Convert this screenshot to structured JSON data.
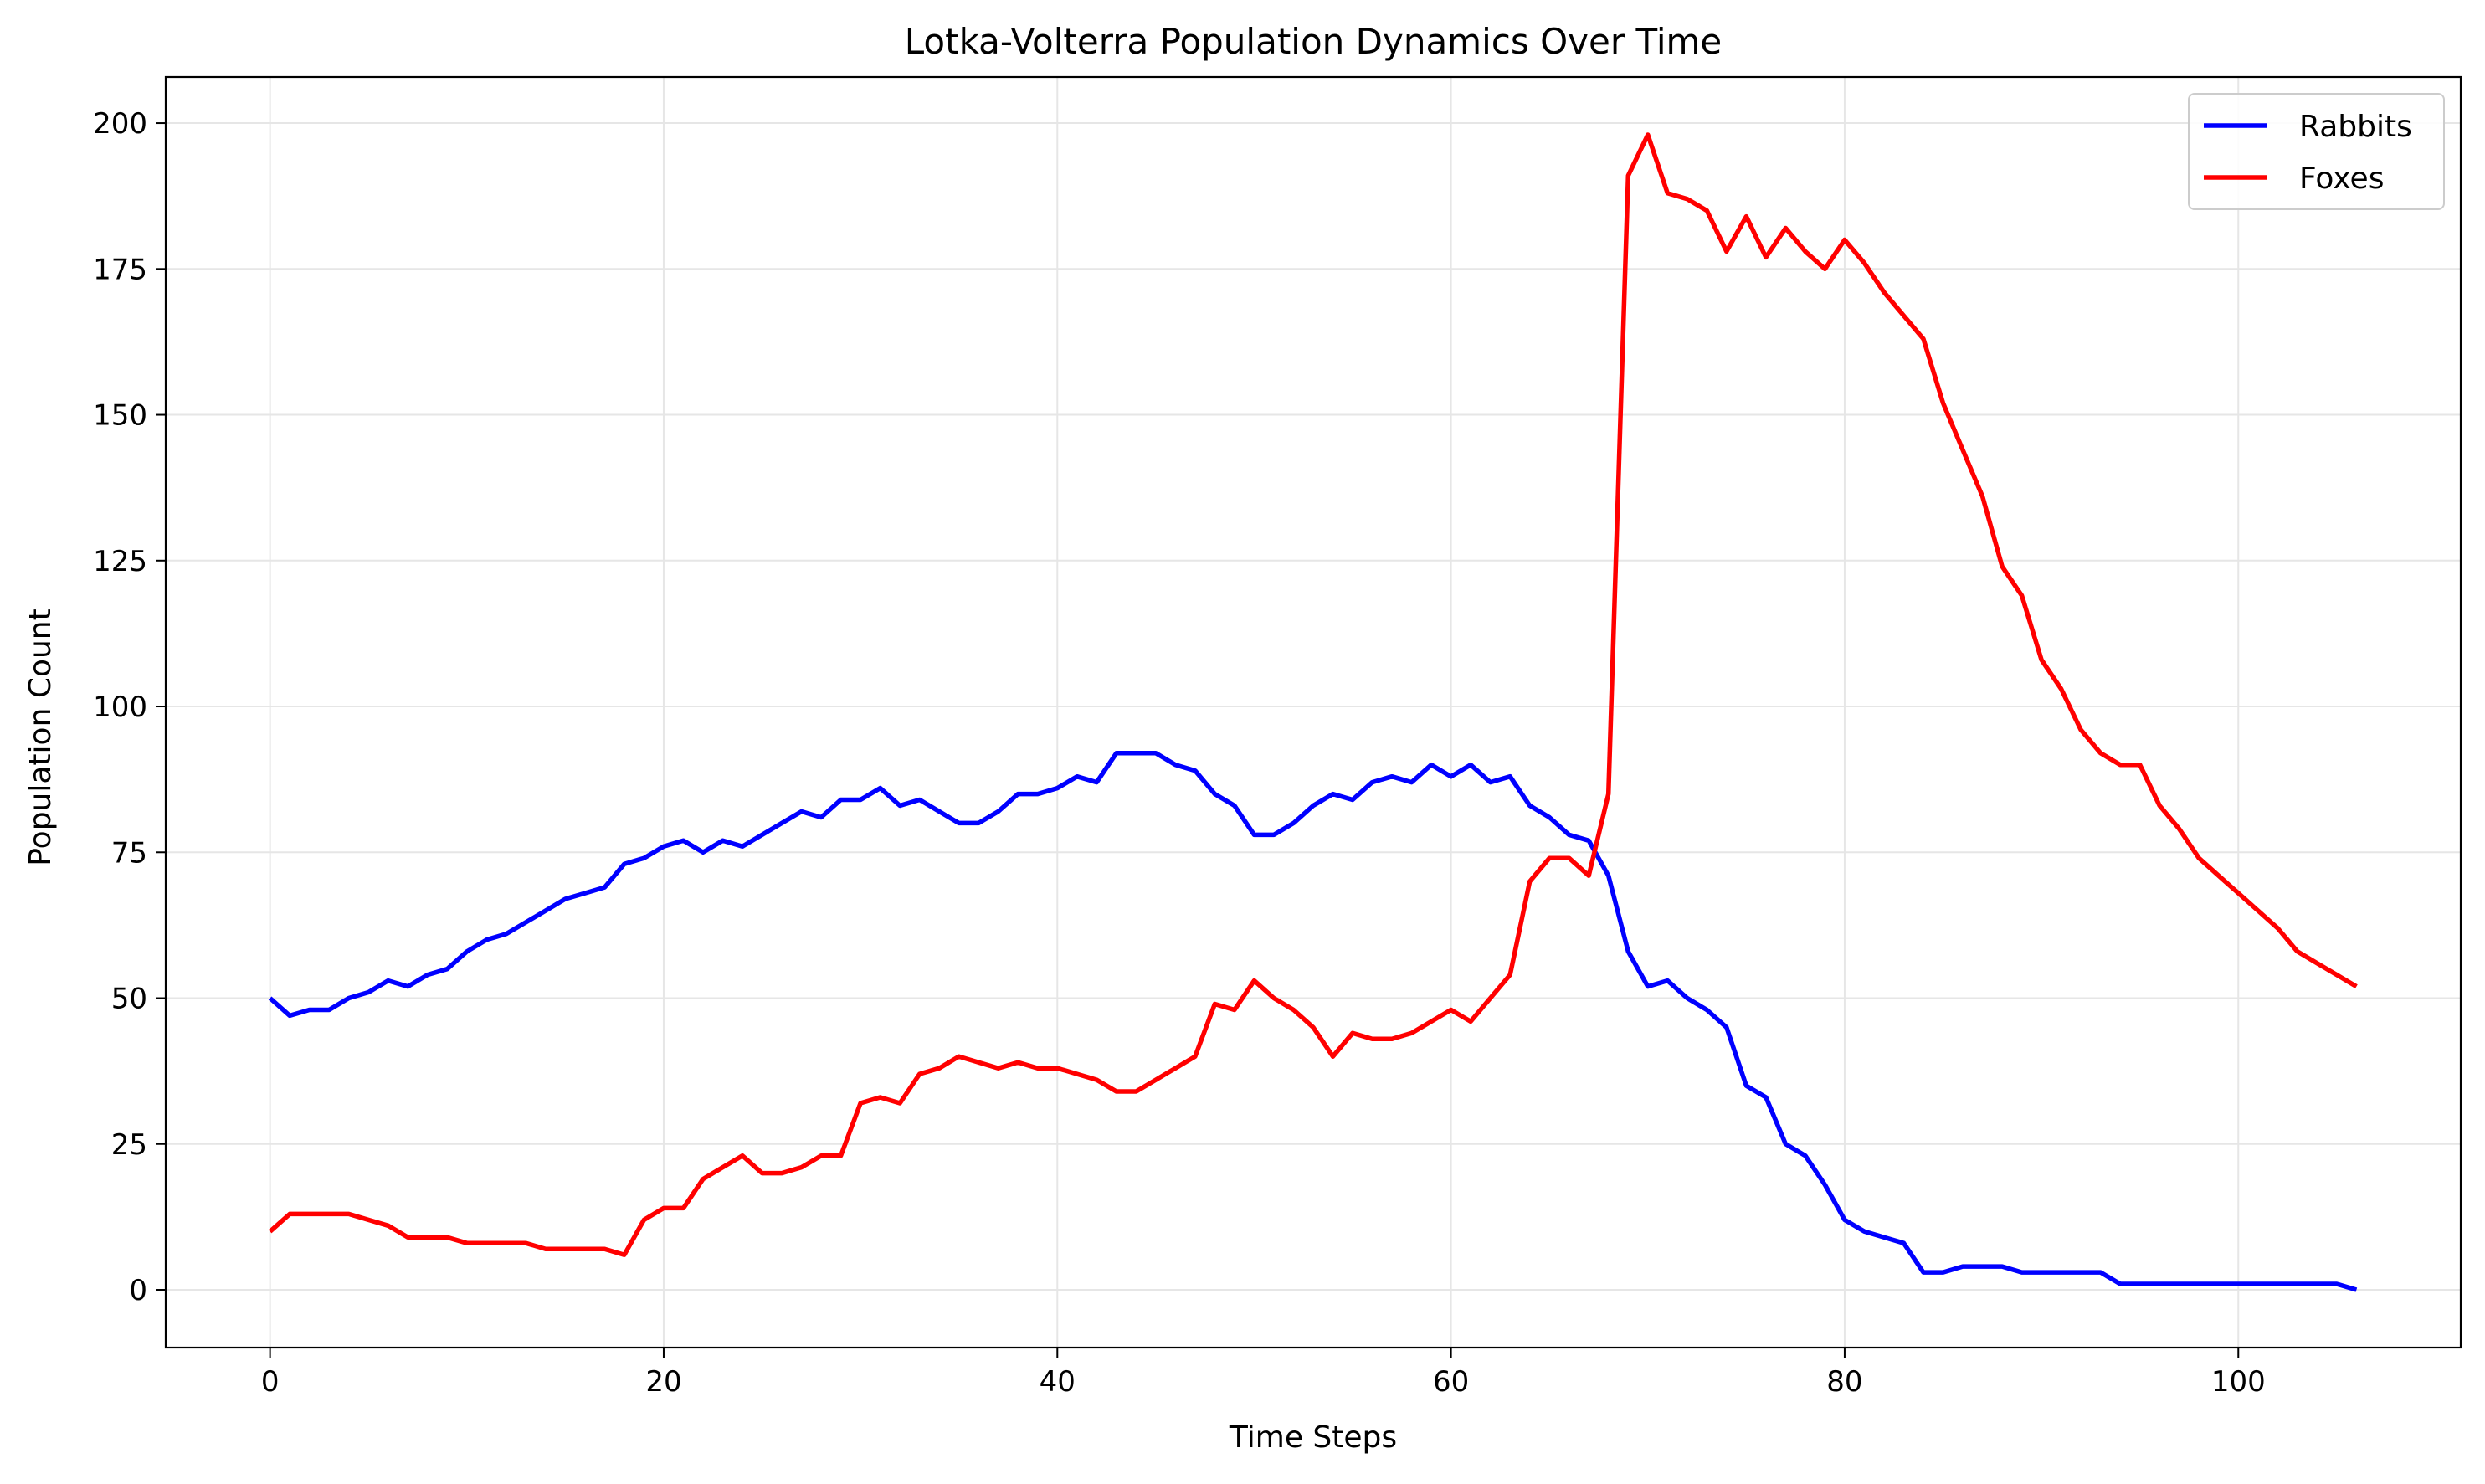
{
  "chart_data": {
    "type": "line",
    "title": "Lotka-Volterra Population Dynamics Over Time",
    "xlabel": "Time Steps",
    "ylabel": "Population Count",
    "xlim": [
      -5.3,
      111.3
    ],
    "ylim": [
      -9.9,
      207.9
    ],
    "xticks": [
      0,
      20,
      40,
      60,
      80,
      100
    ],
    "yticks": [
      0,
      25,
      50,
      75,
      100,
      125,
      150,
      175,
      200
    ],
    "grid": true,
    "legend": "top-right",
    "x_start": 0,
    "x_step": 1,
    "series": [
      {
        "name": "Rabbits",
        "color": "#0000ff",
        "values": [
          50,
          47,
          48,
          48,
          50,
          51,
          53,
          52,
          54,
          55,
          58,
          60,
          61,
          63,
          65,
          67,
          68,
          69,
          73,
          74,
          76,
          77,
          75,
          77,
          76,
          78,
          80,
          82,
          81,
          84,
          84,
          86,
          83,
          84,
          82,
          80,
          80,
          82,
          85,
          85,
          86,
          88,
          87,
          92,
          92,
          92,
          90,
          89,
          85,
          83,
          78,
          78,
          80,
          83,
          85,
          84,
          87,
          88,
          87,
          90,
          88,
          90,
          87,
          88,
          83,
          81,
          78,
          77,
          71,
          58,
          52,
          53,
          50,
          48,
          45,
          35,
          33,
          25,
          23,
          18,
          12,
          10,
          9,
          8,
          3,
          3,
          4,
          4,
          4,
          3,
          3,
          3,
          3,
          3,
          1,
          1,
          1,
          1,
          1,
          1,
          1,
          1,
          1,
          1,
          1,
          1,
          0
        ]
      },
      {
        "name": "Foxes",
        "color": "#ff0000",
        "values": [
          10,
          13,
          13,
          13,
          13,
          12,
          11,
          9,
          9,
          9,
          8,
          8,
          8,
          8,
          7,
          7,
          7,
          7,
          6,
          12,
          14,
          14,
          19,
          21,
          23,
          20,
          20,
          21,
          23,
          23,
          32,
          33,
          32,
          37,
          38,
          40,
          39,
          38,
          39,
          38,
          38,
          37,
          36,
          34,
          34,
          36,
          38,
          40,
          49,
          48,
          53,
          50,
          48,
          45,
          40,
          44,
          43,
          43,
          44,
          46,
          48,
          46,
          50,
          54,
          70,
          74,
          74,
          71,
          85,
          191,
          198,
          188,
          187,
          185,
          178,
          184,
          177,
          182,
          178,
          175,
          180,
          176,
          171,
          167,
          163,
          152,
          144,
          136,
          124,
          119,
          108,
          103,
          96,
          92,
          90,
          90,
          83,
          79,
          74,
          71,
          68,
          65,
          62,
          58,
          56,
          54,
          52
        ]
      }
    ]
  }
}
